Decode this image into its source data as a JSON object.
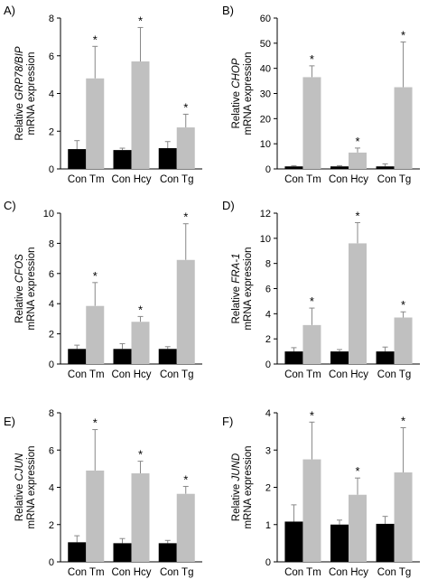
{
  "colors": {
    "control": "#000000",
    "treated": "#c0c0c0",
    "axis": "#000000",
    "error": "#888888"
  },
  "chart_data": [
    {
      "type": "bar",
      "panel_label": "A)",
      "ylabel_line1_prefix": "Relative ",
      "ylabel_gene": "GRP78/BIP",
      "ylabel_line2": "mRNA expression",
      "ylim": [
        0,
        8
      ],
      "yticks": [
        "0",
        "2",
        "4",
        "6",
        "8"
      ],
      "groups": [
        "Con Tm",
        "Con Hcy",
        "Con Tg"
      ],
      "series": [
        {
          "values": [
            1.05,
            1.0,
            1.1
          ],
          "errors": [
            0.45,
            0.1,
            0.35
          ]
        },
        {
          "values": [
            4.8,
            5.7,
            2.2
          ],
          "errors": [
            1.7,
            1.8,
            0.7
          ]
        }
      ],
      "significance": [
        "*",
        "*",
        "*"
      ]
    },
    {
      "type": "bar",
      "panel_label": "B)",
      "ylabel_line1_prefix": "Relative ",
      "ylabel_gene": "CHOP",
      "ylabel_line2": "mRNA expression",
      "ylim": [
        0,
        60
      ],
      "yticks": [
        "0",
        "10",
        "20",
        "30",
        "40",
        "50",
        "60"
      ],
      "groups": [
        "Con Tm",
        "Con Hcy",
        "Con Tg"
      ],
      "series": [
        {
          "values": [
            1.0,
            1.0,
            1.0
          ],
          "errors": [
            0.3,
            0.3,
            1.0
          ]
        },
        {
          "values": [
            36.5,
            6.5,
            32.5
          ],
          "errors": [
            4.5,
            1.8,
            18
          ]
        }
      ],
      "significance": [
        "*",
        "*",
        "*"
      ]
    },
    {
      "type": "bar",
      "panel_label": "C)",
      "ylabel_line1_prefix": "Relative ",
      "ylabel_gene": "CFOS",
      "ylabel_line2": "mRNA expression",
      "ylim": [
        0,
        10
      ],
      "yticks": [
        "0",
        "2",
        "4",
        "6",
        "8",
        "10"
      ],
      "groups": [
        "Con Tm",
        "Con Hcy",
        "Con Tg"
      ],
      "series": [
        {
          "values": [
            1.0,
            1.0,
            1.0
          ],
          "errors": [
            0.25,
            0.35,
            0.15
          ]
        },
        {
          "values": [
            3.85,
            2.8,
            6.9
          ],
          "errors": [
            1.55,
            0.35,
            2.4
          ]
        }
      ],
      "significance": [
        "*",
        "*",
        "*"
      ]
    },
    {
      "type": "bar",
      "panel_label": "D)",
      "ylabel_line1_prefix": "Relative ",
      "ylabel_gene": "FRA-1",
      "ylabel_line2": "mRNA expression",
      "ylim": [
        0,
        12
      ],
      "yticks": [
        "0",
        "2",
        "4",
        "6",
        "8",
        "10",
        "12"
      ],
      "groups": [
        "Con Tm",
        "Con Hcy",
        "Con Tg"
      ],
      "series": [
        {
          "values": [
            1.0,
            1.0,
            1.0
          ],
          "errors": [
            0.3,
            0.15,
            0.35
          ]
        },
        {
          "values": [
            3.1,
            9.6,
            3.7
          ],
          "errors": [
            1.35,
            1.65,
            0.45
          ]
        }
      ],
      "significance": [
        "*",
        "*",
        "*"
      ]
    },
    {
      "type": "bar",
      "panel_label": "E)",
      "ylabel_line1_prefix": "Relative ",
      "ylabel_gene": "CJUN",
      "ylabel_line2": "mRNA expression",
      "ylim": [
        0,
        8
      ],
      "yticks": [
        "0",
        "2",
        "4",
        "6",
        "8"
      ],
      "groups": [
        "Con Tm",
        "Con Hcy",
        "Con Tg"
      ],
      "series": [
        {
          "values": [
            1.05,
            1.0,
            1.0
          ],
          "errors": [
            0.35,
            0.25,
            0.15
          ]
        },
        {
          "values": [
            4.9,
            4.75,
            3.65
          ],
          "errors": [
            2.2,
            0.65,
            0.4
          ]
        }
      ],
      "significance": [
        "*",
        "*",
        "*"
      ]
    },
    {
      "type": "bar",
      "panel_label": "F)",
      "ylabel_line1_prefix": "Relative ",
      "ylabel_gene": "JUND",
      "ylabel_line2": "mRNA expression",
      "ylim": [
        0,
        4
      ],
      "yticks": [
        "0",
        "1",
        "2",
        "3",
        "4"
      ],
      "groups": [
        "Con Tm",
        "Con Hcy",
        "Con Tg"
      ],
      "series": [
        {
          "values": [
            1.08,
            1.0,
            1.02
          ],
          "errors": [
            0.45,
            0.12,
            0.2
          ]
        },
        {
          "values": [
            2.75,
            1.8,
            2.4
          ],
          "errors": [
            1.0,
            0.45,
            1.2
          ]
        }
      ],
      "significance": [
        "*",
        "*",
        "*"
      ]
    }
  ]
}
